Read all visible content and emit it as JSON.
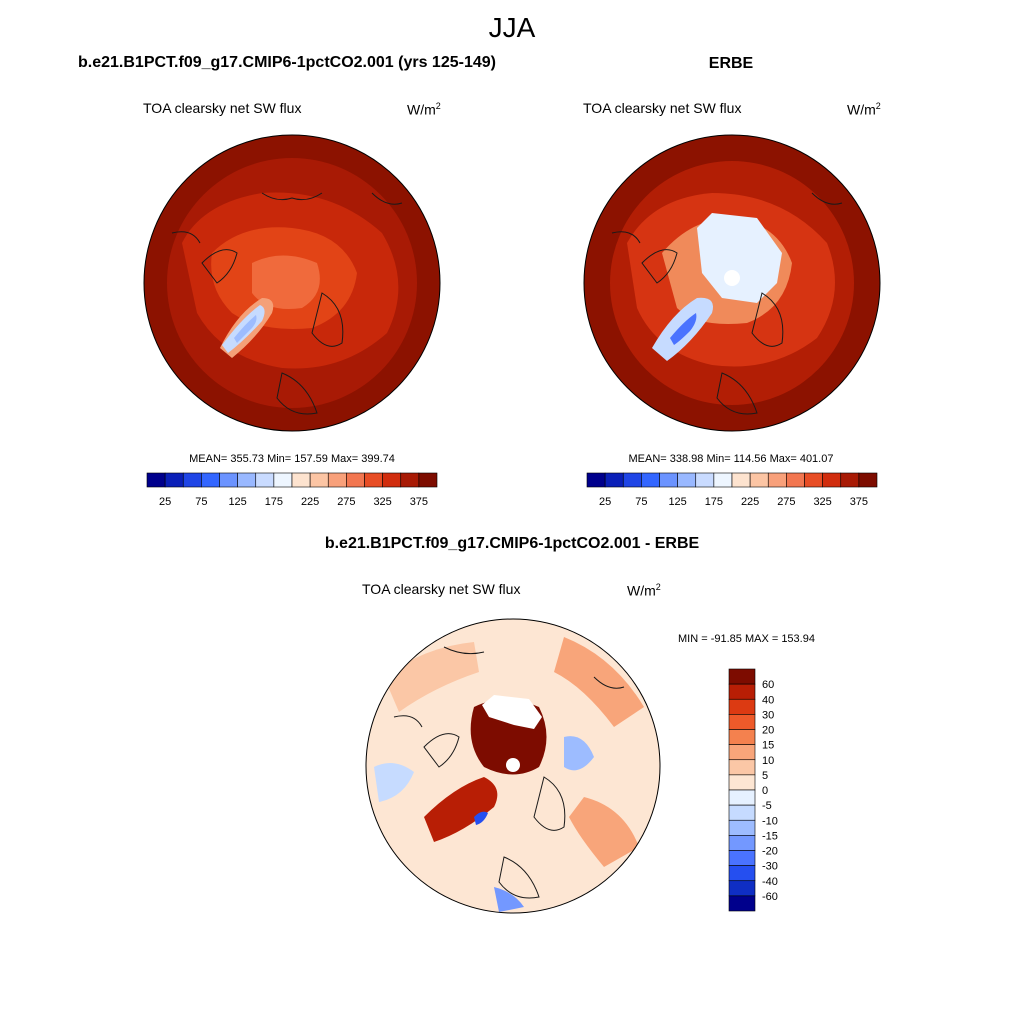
{
  "figure": {
    "season": "JJA"
  },
  "panels": {
    "model": {
      "title": "b.e21.B1PCT.f09_g17.CMIP6-1pctCO2.001 (yrs 125-149)",
      "variable": "TOA clearsky net SW flux",
      "units_base": "W/m",
      "units_exp": "2",
      "stats": "MEAN= 355.73  Min= 157.59  Max= 399.74"
    },
    "obs": {
      "title": "ERBE",
      "variable": "TOA clearsky net SW flux",
      "units_base": "W/m",
      "units_exp": "2",
      "stats": "MEAN= 338.98  Min= 114.56  Max= 401.07"
    },
    "diff": {
      "title": "b.e21.B1PCT.f09_g17.CMIP6-1pctCO2.001 - ERBE",
      "variable": "TOA clearsky net SW flux",
      "units_base": "W/m",
      "units_exp": "2",
      "stats": "MIN = -91.85 MAX = 153.94"
    }
  },
  "colorbars": {
    "absolute": {
      "colors": [
        "#00008c",
        "#0a1fb8",
        "#1f45e6",
        "#3366ff",
        "#6b93ff",
        "#99b8ff",
        "#c9dbff",
        "#eef6ff",
        "#fde3cf",
        "#fcc5a4",
        "#f8a07a",
        "#f27650",
        "#e84d25",
        "#d12d0e",
        "#a81a05",
        "#7d0c00"
      ],
      "tick_labels": [
        "25",
        "75",
        "125",
        "175",
        "225",
        "275",
        "325",
        "375"
      ]
    },
    "difference": {
      "colors": [
        "#7d0c00",
        "#b81e05",
        "#dc3a12",
        "#ee5a2a",
        "#f4814e",
        "#f8a57a",
        "#fbc7a6",
        "#fde6d3",
        "#e6f1ff",
        "#c6dbff",
        "#9dbcff",
        "#7398ff",
        "#4a73ff",
        "#254ff0",
        "#0f2ec4",
        "#00008c"
      ],
      "tick_labels": [
        "60",
        "40",
        "30",
        "20",
        "15",
        "10",
        "5",
        "0",
        "-5",
        "-10",
        "-15",
        "-20",
        "-30",
        "-40",
        "-60"
      ]
    }
  }
}
